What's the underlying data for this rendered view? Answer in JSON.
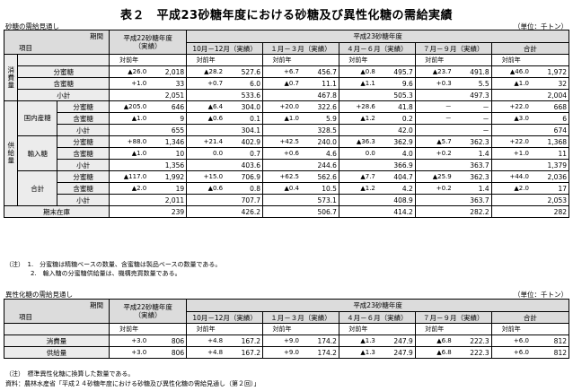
{
  "title": "表２　平成23砂糖年度における砂糖及び異性化糖の需給実績",
  "unit": "（単位：千トン）",
  "sugar": {
    "caption": "砂糖の需給見通し",
    "headers": {
      "kikan": "期間",
      "koumoku": "項目",
      "h22": "平成22砂糖年度",
      "jisseki": "（実績）",
      "h23": "平成23砂糖年度",
      "q1": "10月－12月（実績）",
      "q2": "１月－３月（実績）",
      "q3": "４月－６月（実績）",
      "q4": "７月－９月（実績）",
      "total": "合計",
      "taizennen": "対前年"
    },
    "groups": {
      "shouhi": "消費量",
      "kyoukyu": "供給量",
      "kokunai": "国内産糖",
      "yunyu": "輸入糖",
      "goukei": "合計",
      "kimatsu": "期末在庫"
    },
    "labels": {
      "bunmitsu": "分蜜糖",
      "ganmitsu": "含蜜糖",
      "shoukei": "小計"
    },
    "rows": {
      "cons_bun": {
        "h22": [
          "▲26.0",
          "2,018"
        ],
        "q1": [
          "▲28.2",
          "527.6"
        ],
        "q2": [
          "+6.7",
          "456.7"
        ],
        "q3": [
          "▲0.8",
          "495.7"
        ],
        "q4": [
          "▲23.7",
          "491.8"
        ],
        "t": [
          "▲46.0",
          "1,972"
        ]
      },
      "cons_gan": {
        "h22": [
          "+1.0",
          "33"
        ],
        "q1": [
          "+0.7",
          "6.0"
        ],
        "q2": [
          "▲0.7",
          "11.1"
        ],
        "q3": [
          "▲1.1",
          "9.6"
        ],
        "q4": [
          "+0.3",
          "5.5"
        ],
        "t": [
          "▲1.0",
          "32"
        ]
      },
      "cons_sub": {
        "h22": [
          "",
          "2,051"
        ],
        "q1": [
          "",
          "533.6"
        ],
        "q2": [
          "",
          "467.8"
        ],
        "q3": [
          "",
          "505.3"
        ],
        "q4": [
          "",
          "497.3"
        ],
        "t": [
          "",
          "2,004"
        ]
      },
      "dom_bun": {
        "h22": [
          "▲205.0",
          "646"
        ],
        "q1": [
          "▲6.4",
          "304.0"
        ],
        "q2": [
          "+20.0",
          "322.6"
        ],
        "q3": [
          "+28.6",
          "41.8"
        ],
        "q4": [
          "－",
          "－"
        ],
        "t": [
          "+22.0",
          "668"
        ]
      },
      "dom_gan": {
        "h22": [
          "▲1.0",
          "9"
        ],
        "q1": [
          "▲0.6",
          "0.1"
        ],
        "q2": [
          "▲1.0",
          "5.9"
        ],
        "q3": [
          "▲1.2",
          "0.2"
        ],
        "q4": [
          "－",
          "－"
        ],
        "t": [
          "▲3.0",
          "6"
        ]
      },
      "dom_sub": {
        "h22": [
          "",
          "655"
        ],
        "q1": [
          "",
          "304.1"
        ],
        "q2": [
          "",
          "328.5"
        ],
        "q3": [
          "",
          "42.0"
        ],
        "q4": [
          "",
          "－"
        ],
        "t": [
          "",
          "674"
        ]
      },
      "imp_bun": {
        "h22": [
          "+88.0",
          "1,346"
        ],
        "q1": [
          "+21.4",
          "402.9"
        ],
        "q2": [
          "+42.5",
          "240.0"
        ],
        "q3": [
          "▲36.3",
          "362.9"
        ],
        "q4": [
          "▲5.7",
          "362.3"
        ],
        "t": [
          "+22.0",
          "1,368"
        ]
      },
      "imp_gan": {
        "h22": [
          "▲1.0",
          "10"
        ],
        "q1": [
          "0.0",
          "0.7"
        ],
        "q2": [
          "+0.6",
          "4.6"
        ],
        "q3": [
          "0.0",
          "4.0"
        ],
        "q4": [
          "+0.2",
          "1.4"
        ],
        "t": [
          "+1.0",
          "11"
        ]
      },
      "imp_sub": {
        "h22": [
          "",
          "1,356"
        ],
        "q1": [
          "",
          "403.6"
        ],
        "q2": [
          "",
          "244.6"
        ],
        "q3": [
          "",
          "366.9"
        ],
        "q4": [
          "",
          "363.7"
        ],
        "t": [
          "",
          "1,379"
        ]
      },
      "tot_bun": {
        "h22": [
          "▲117.0",
          "1,992"
        ],
        "q1": [
          "+15.0",
          "706.9"
        ],
        "q2": [
          "+62.5",
          "562.6"
        ],
        "q3": [
          "▲7.7",
          "404.7"
        ],
        "q4": [
          "▲25.9",
          "362.3"
        ],
        "t": [
          "+44.0",
          "2,036"
        ]
      },
      "tot_gan": {
        "h22": [
          "▲2.0",
          "19"
        ],
        "q1": [
          "▲0.6",
          "0.8"
        ],
        "q2": [
          "▲0.4",
          "10.5"
        ],
        "q3": [
          "▲1.2",
          "4.2"
        ],
        "q4": [
          "+0.2",
          "1.4"
        ],
        "t": [
          "▲2.0",
          "17"
        ]
      },
      "tot_sub": {
        "h22": [
          "",
          "2,011"
        ],
        "q1": [
          "",
          "707.7"
        ],
        "q2": [
          "",
          "573.1"
        ],
        "q3": [
          "",
          "408.9"
        ],
        "q4": [
          "",
          "363.7"
        ],
        "t": [
          "",
          "2,053"
        ]
      },
      "stock": {
        "h22": [
          "",
          "239"
        ],
        "q1": [
          "",
          "426.2"
        ],
        "q2": [
          "",
          "506.7"
        ],
        "q3": [
          "",
          "414.2"
        ],
        "q4": [
          "",
          "282.2"
        ],
        "t": [
          "",
          "282"
        ]
      }
    },
    "notes": [
      "（注）　1.　分蜜糖は精糖ベースの数量、含蜜糖は製品ベースの数量である。",
      "　　　　2.　輸入糖の分蜜糖供給量は、機構売買数量である。"
    ]
  },
  "hfcs": {
    "caption": "異性化糖の需給見通し",
    "labels": {
      "shouhi": "消費量",
      "kyoukyu": "供給量"
    },
    "rows": {
      "cons": {
        "h22": [
          "+3.0",
          "806"
        ],
        "q1": [
          "+4.8",
          "167.2"
        ],
        "q2": [
          "+9.0",
          "174.2"
        ],
        "q3": [
          "▲1.3",
          "247.9"
        ],
        "q4": [
          "▲6.8",
          "222.3"
        ],
        "t": [
          "+6.0",
          "812"
        ]
      },
      "supply": {
        "h22": [
          "+3.0",
          "806"
        ],
        "q1": [
          "+4.8",
          "167.2"
        ],
        "q2": [
          "+9.0",
          "174.2"
        ],
        "q3": [
          "▲1.3",
          "247.9"
        ],
        "q4": [
          "▲6.8",
          "222.3"
        ],
        "t": [
          "+6.0",
          "812"
        ]
      }
    },
    "notes": [
      "（注）　標準異性化糖に換算した数量である。",
      "資料：農林水産省「平成２４砂糖年度における砂糖及び異性化糖の需給見通し（第２回）」"
    ]
  }
}
